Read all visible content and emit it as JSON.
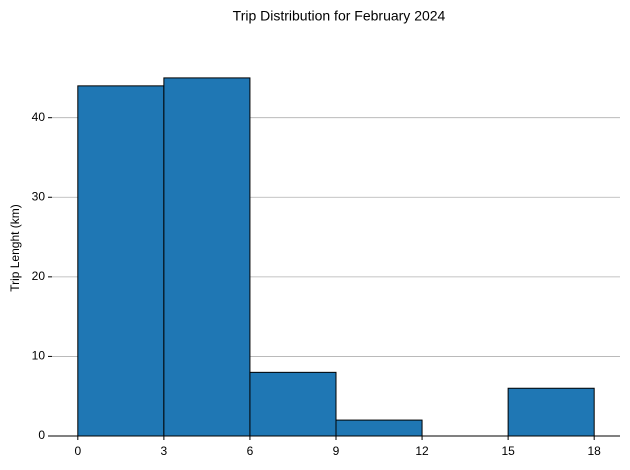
{
  "chart_data": {
    "type": "histogram",
    "title": "Trip Distribution for February 2024",
    "y_label": "Trip Lenght (km)",
    "bins": [
      0,
      3,
      6,
      9,
      12,
      15,
      18
    ],
    "values": [
      44,
      45,
      8,
      2,
      0,
      6
    ],
    "color": "#1f77b4",
    "xlim": [
      -0.9,
      18.9
    ],
    "xticks": [
      0,
      3,
      6,
      9,
      12,
      15,
      18
    ],
    "ylim": [
      0,
      47.25
    ],
    "yticks": [
      0,
      10,
      20,
      30,
      40
    ],
    "grid": true
  }
}
